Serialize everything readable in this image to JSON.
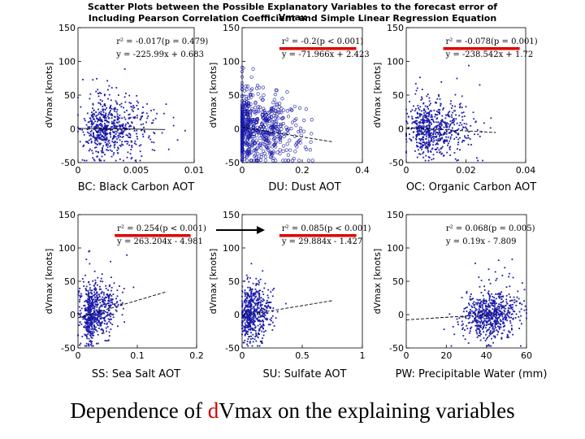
{
  "title": {
    "line1": "Scatter Plots between the Possible Explanatory Variables to the forecast error of Vmax",
    "line2": "Including Pearson Correlation Coefficient and Simple Linear Regression Equation"
  },
  "bottom_title": {
    "prefix": "Dependence of ",
    "accent": "d",
    "suffix": "Vmax on the explaining variables"
  },
  "colors": {
    "points": "#1a1aa8",
    "highlight": "#e00000",
    "arrow": "#000000"
  },
  "chart_data": [
    {
      "type": "scatter",
      "id": "bc",
      "caption": "BC: Black Carbon AOT",
      "ylabel": "dVmax [knots]",
      "xlim": [
        0,
        0.01
      ],
      "ylim": [
        -50,
        150
      ],
      "xticks": [
        0,
        0.005,
        0.01
      ],
      "xtick_labels": [
        "0",
        "0.005",
        "0.01"
      ],
      "yticks": [
        -50,
        0,
        50,
        100,
        150
      ],
      "ytick_labels": [
        "-50",
        "0",
        "50",
        "100",
        "150"
      ],
      "stats_line1": "r² = -0.017(p = 0.479)",
      "stats_line2": "y = -225.99x + 0.683",
      "r": -0.017,
      "p": 0.479,
      "slope": -225.99,
      "intercept": 0.683,
      "highlight": false,
      "cloud": {
        "x_mean": 0.0025,
        "x_sd": 0.0016,
        "y_sd": 22,
        "n": 650,
        "marker": "dot"
      }
    },
    {
      "type": "scatter",
      "id": "du",
      "caption": "DU: Dust AOT",
      "ylabel": "dVmax [knots]",
      "xlim": [
        0,
        0.4
      ],
      "ylim": [
        -50,
        150
      ],
      "xticks": [
        0,
        0.2,
        0.4
      ],
      "xtick_labels": [
        "0",
        "0.2",
        "0.4"
      ],
      "yticks": [
        -50,
        0,
        50,
        100,
        150
      ],
      "ytick_labels": [
        "-50",
        "0",
        "50",
        "100",
        "150"
      ],
      "stats_line1": "r² = -0.2(p < 0.001)",
      "stats_line2": "y = -71.966x + 2.423",
      "r": -0.2,
      "p": 0.001,
      "slope": -71.966,
      "intercept": 2.423,
      "highlight": true,
      "cloud": {
        "x_mean": 0.03,
        "x_sd": 0.07,
        "y_sd": 25,
        "n": 700,
        "marker": "circle"
      }
    },
    {
      "type": "scatter",
      "id": "oc",
      "caption": "OC: Organic Carbon AOT",
      "ylabel": "dVmax [knots]",
      "xlim": [
        0,
        0.04
      ],
      "ylim": [
        -50,
        150
      ],
      "xticks": [
        0,
        0.02,
        0.04
      ],
      "xtick_labels": [
        "0",
        "0.02",
        "0.04"
      ],
      "yticks": [
        -50,
        0,
        50,
        100,
        150
      ],
      "ytick_labels": [
        "-50",
        "0",
        "50",
        "100",
        "150"
      ],
      "stats_line1": "r² = -0.078(p = 0.001)",
      "stats_line2": "y = -238.542x + 1.72",
      "r": -0.078,
      "p": 0.001,
      "slope": -238.542,
      "intercept": 1.72,
      "highlight": true,
      "cloud": {
        "x_mean": 0.008,
        "x_sd": 0.006,
        "y_sd": 20,
        "n": 650,
        "marker": "dot"
      }
    },
    {
      "type": "scatter",
      "id": "ss",
      "caption": "SS: Sea Salt AOT",
      "ylabel": "dVmax [knots]",
      "xlim": [
        0,
        0.2
      ],
      "ylim": [
        -50,
        150
      ],
      "xticks": [
        0,
        0.1,
        0.2
      ],
      "xtick_labels": [
        "0",
        "0.1",
        "0.2"
      ],
      "yticks": [
        -50,
        0,
        50,
        100,
        150
      ],
      "ytick_labels": [
        "-50",
        "0",
        "50",
        "100",
        "150"
      ],
      "stats_line1": "r² = 0.254(p < 0.001)",
      "stats_line2": "y = 263.204x - 4.981",
      "r": 0.254,
      "p": 0.001,
      "slope": 263.204,
      "intercept": -4.981,
      "highlight": true,
      "cloud": {
        "x_mean": 0.025,
        "x_sd": 0.018,
        "y_sd": 20,
        "n": 650,
        "marker": "dot"
      }
    },
    {
      "type": "scatter",
      "id": "su",
      "caption": "SU: Sulfate AOT",
      "ylabel": "dVmax [knots]",
      "xlim": [
        0,
        1
      ],
      "ylim": [
        -50,
        150
      ],
      "xticks": [
        0,
        0.5,
        1
      ],
      "xtick_labels": [
        "0",
        "0.5",
        "1"
      ],
      "yticks": [
        -50,
        0,
        50,
        100,
        150
      ],
      "ytick_labels": [
        "-50",
        "0",
        "50",
        "100",
        "150"
      ],
      "stats_line1": "r² = 0.085(p < 0.001)",
      "stats_line2": "y = 29.884x - 1.427",
      "r": 0.085,
      "p": 0.001,
      "slope": 29.884,
      "intercept": -1.427,
      "highlight": true,
      "cloud": {
        "x_mean": 0.08,
        "x_sd": 0.07,
        "y_sd": 20,
        "n": 550,
        "marker": "dot"
      }
    },
    {
      "type": "scatter",
      "id": "pw",
      "caption": "PW: Precipitable Water (mm)",
      "ylabel": "dVmax [knots]",
      "xlim": [
        0,
        60
      ],
      "ylim": [
        -50,
        150
      ],
      "xticks": [
        0,
        20,
        40,
        60
      ],
      "xtick_labels": [
        "0",
        "20",
        "40",
        "60"
      ],
      "yticks": [
        -50,
        0,
        50,
        100,
        150
      ],
      "ytick_labels": [
        "-50",
        "0",
        "50",
        "100",
        "150"
      ],
      "stats_line1": "r² = 0.068(p = 0.005)",
      "stats_line2": "y = 0.19x - 7.809",
      "r": 0.068,
      "p": 0.005,
      "slope": 0.19,
      "intercept": -7.809,
      "highlight": false,
      "cloud": {
        "x_mean": 42,
        "x_sd": 7,
        "y_sd": 18,
        "n": 650,
        "marker": "dot"
      }
    }
  ]
}
